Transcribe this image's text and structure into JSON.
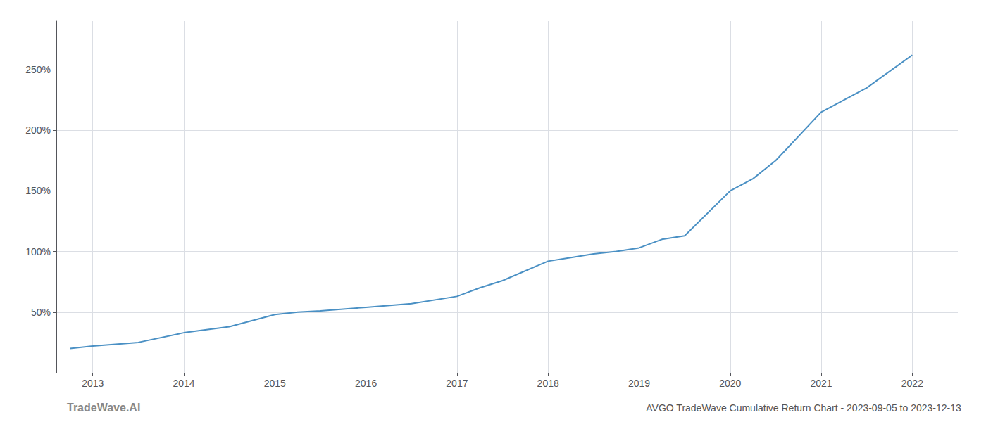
{
  "chart_data": {
    "type": "line",
    "title": "AVGO TradeWave Cumulative Return Chart - 2023-09-05 to 2023-12-13",
    "annotations": [
      "TradeWave.AI"
    ],
    "x": [
      2012.75,
      2013.0,
      2013.5,
      2014.0,
      2014.5,
      2015.0,
      2015.25,
      2015.5,
      2016.0,
      2016.5,
      2017.0,
      2017.25,
      2017.5,
      2018.0,
      2018.25,
      2018.5,
      2018.75,
      2019.0,
      2019.25,
      2019.5,
      2020.0,
      2020.25,
      2020.5,
      2021.0,
      2021.25,
      2021.5,
      2022.0
    ],
    "values": [
      20,
      22,
      25,
      33,
      38,
      48,
      50,
      51,
      54,
      57,
      63,
      70,
      76,
      92,
      95,
      98,
      100,
      103,
      110,
      113,
      150,
      160,
      175,
      215,
      225,
      235,
      262
    ],
    "color": "#4a90c4",
    "xlim": [
      2012.6,
      2022.5
    ],
    "xticks": [
      2013,
      2014,
      2015,
      2016,
      2017,
      2018,
      2019,
      2020,
      2021,
      2022
    ],
    "ylim": [
      0,
      290
    ],
    "yticks": [
      {
        "value": 50,
        "label": "50%"
      },
      {
        "value": 100,
        "label": "100%"
      },
      {
        "value": 150,
        "label": "150%"
      },
      {
        "value": 200,
        "label": "200%"
      },
      {
        "value": 250,
        "label": "250%"
      }
    ],
    "grid": true
  }
}
